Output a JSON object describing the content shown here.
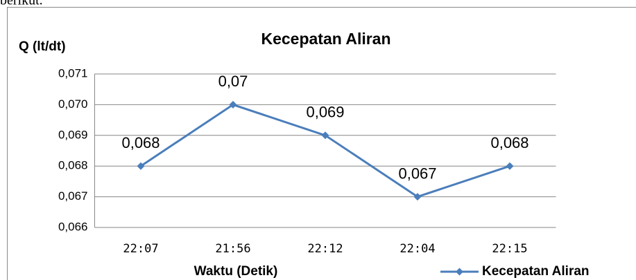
{
  "text_above": "berikut.",
  "chart_data": {
    "type": "line",
    "title": "Kecepatan Aliran",
    "ylabel": "Q (lt/dt)",
    "xlabel": "Waktu (Detik)",
    "categories": [
      "22:07",
      "21:56",
      "22:12",
      "22:04",
      "22:15"
    ],
    "series": [
      {
        "name": "Kecepatan Aliran",
        "color": "#4a7ebb",
        "values": [
          0.068,
          0.07,
          0.069,
          0.067,
          0.068
        ],
        "value_labels": [
          "0,068",
          "0,07",
          "0,069",
          "0,067",
          "0,068"
        ]
      }
    ],
    "ylim": [
      0.066,
      0.071
    ],
    "yticks": [
      {
        "value": 0.066,
        "label": "0,066"
      },
      {
        "value": 0.067,
        "label": "0,067"
      },
      {
        "value": 0.068,
        "label": "0,068"
      },
      {
        "value": 0.069,
        "label": "0,069"
      },
      {
        "value": 0.07,
        "label": "0,070"
      },
      {
        "value": 0.071,
        "label": "0,071"
      }
    ],
    "grid": true,
    "legend": "bottom-right"
  }
}
